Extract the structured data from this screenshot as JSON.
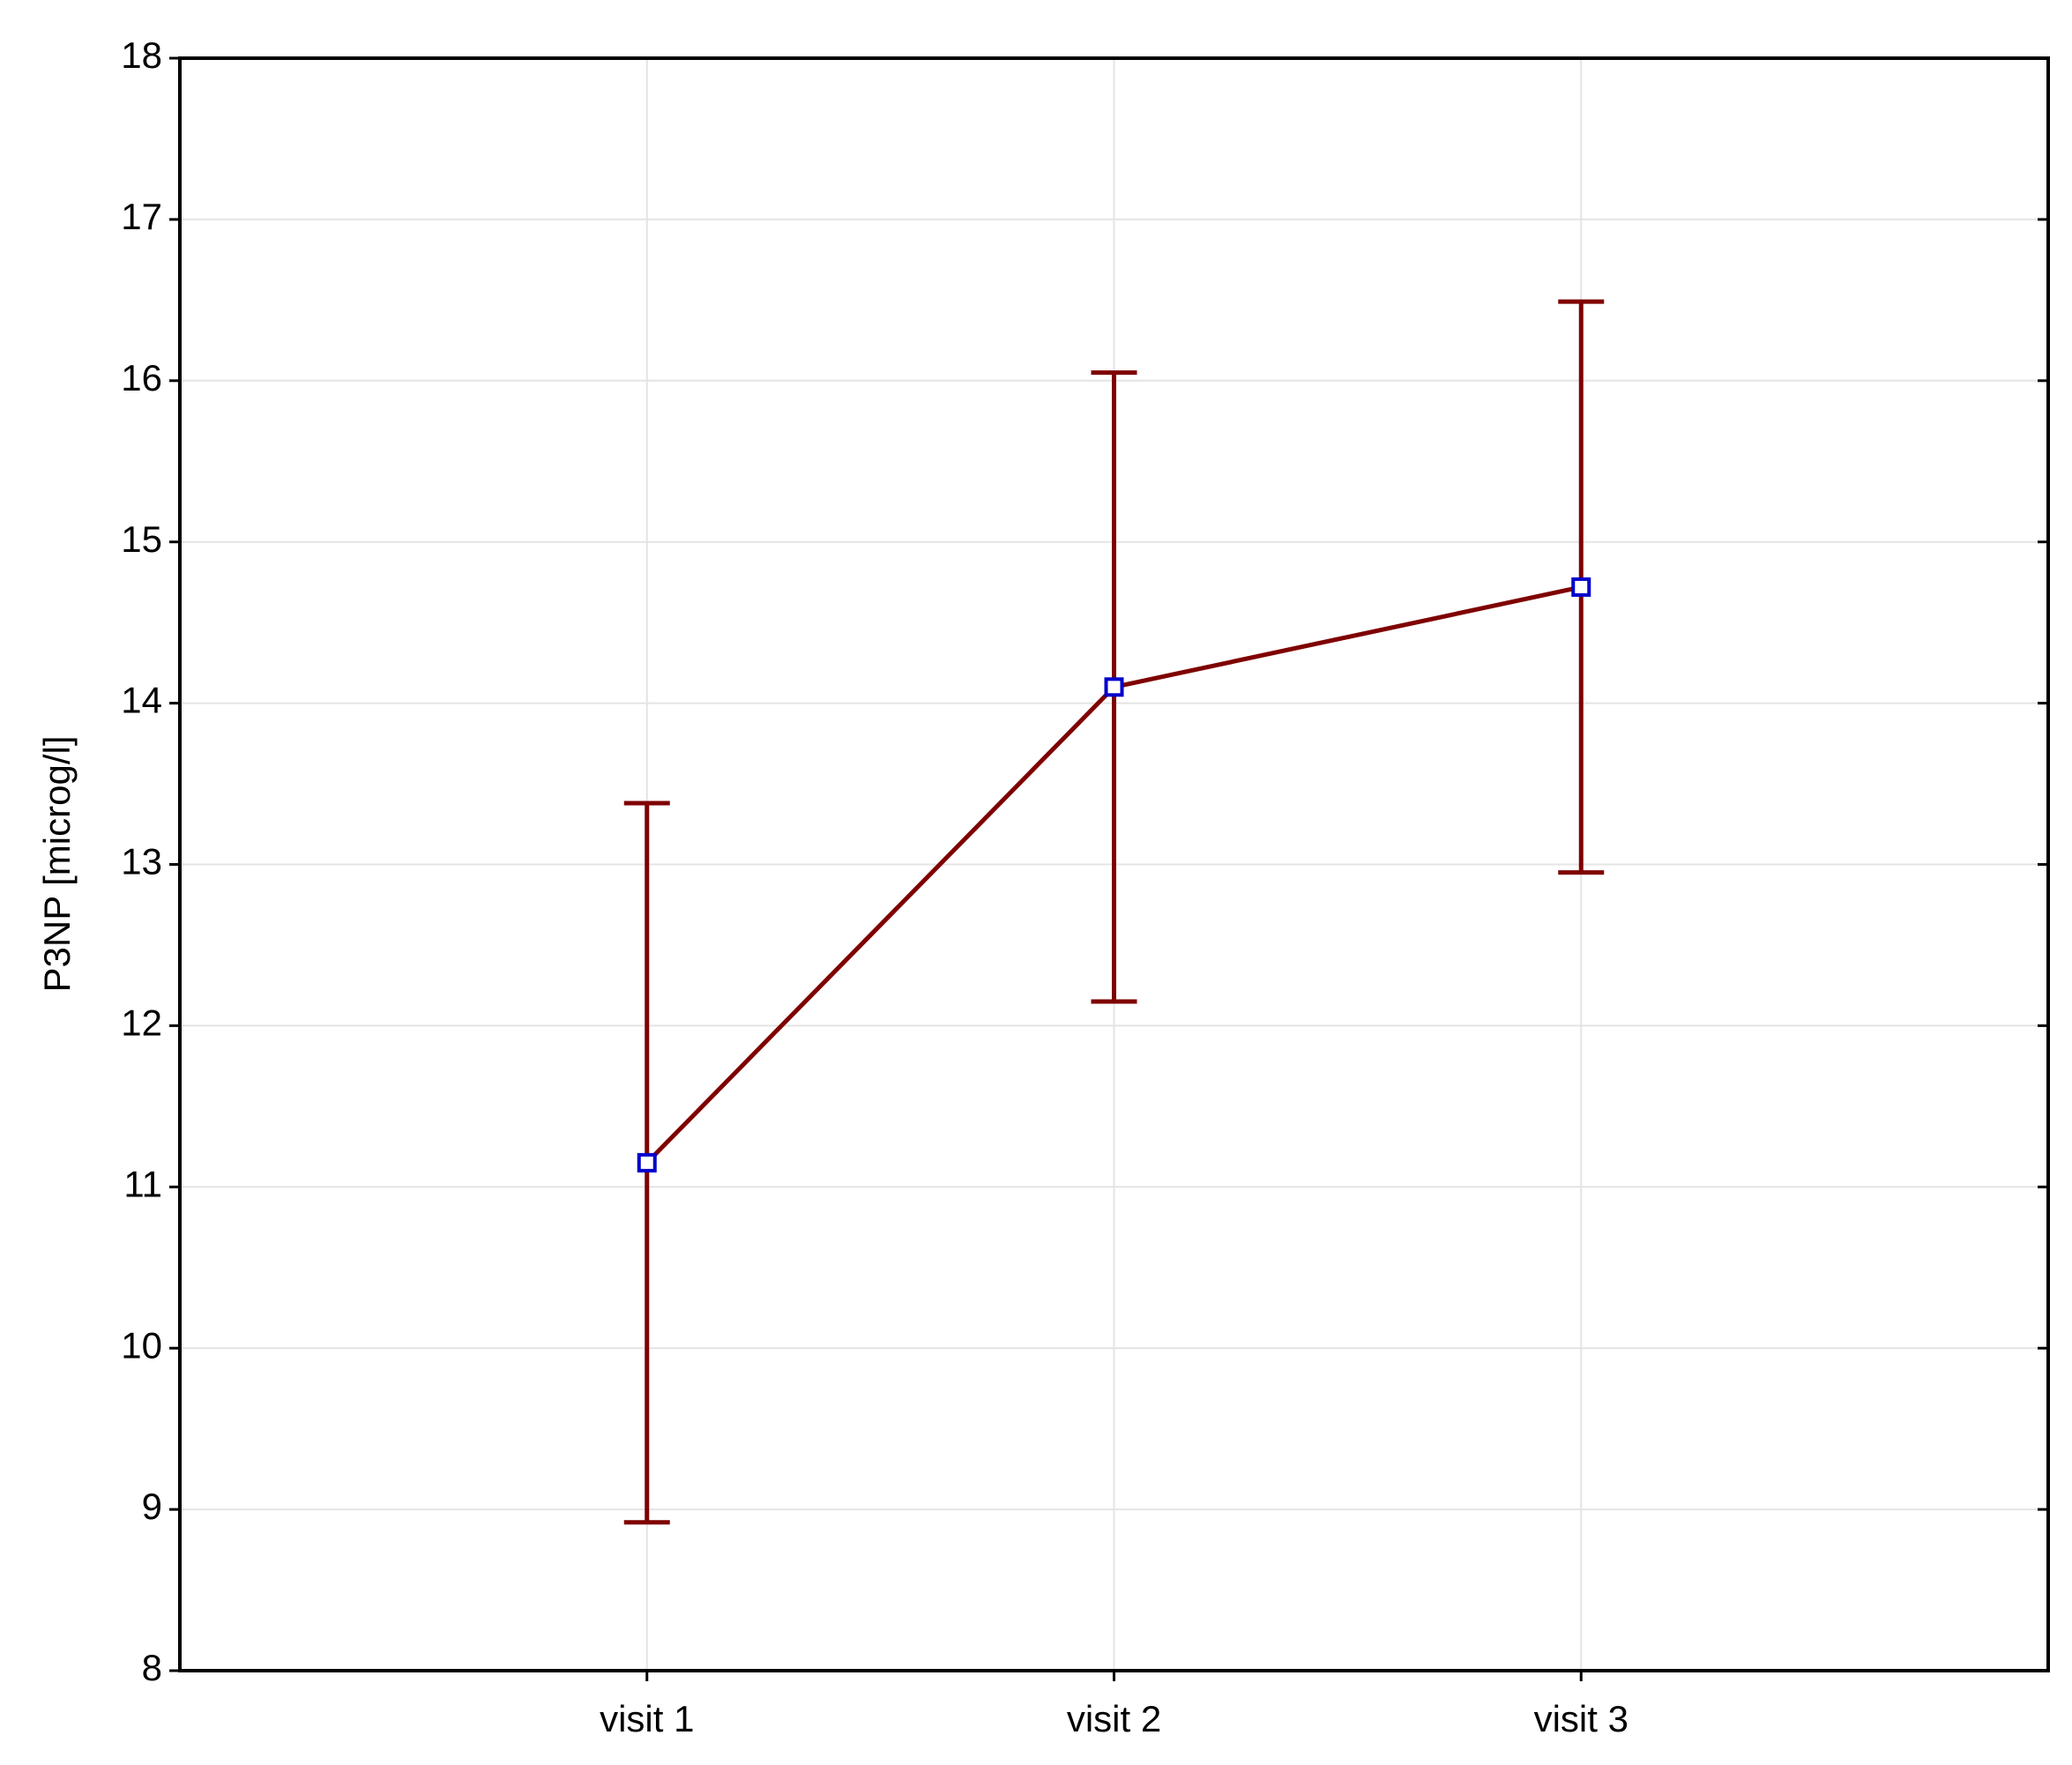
{
  "chart_data": {
    "type": "line",
    "y_label": "P3NP [microg/l]",
    "categories": [
      "visit 1",
      "visit 2",
      "visit 3"
    ],
    "series": [
      {
        "color": "#7f0000",
        "marker_color": "#0000cc",
        "values": [
          11.15,
          14.1,
          14.72
        ],
        "errors": [
          2.23,
          1.95,
          1.77
        ]
      }
    ],
    "ylim": [
      8,
      18
    ],
    "yticks": [
      8,
      9,
      10,
      11,
      12,
      13,
      14,
      15,
      16,
      17,
      18
    ],
    "grid": true
  }
}
